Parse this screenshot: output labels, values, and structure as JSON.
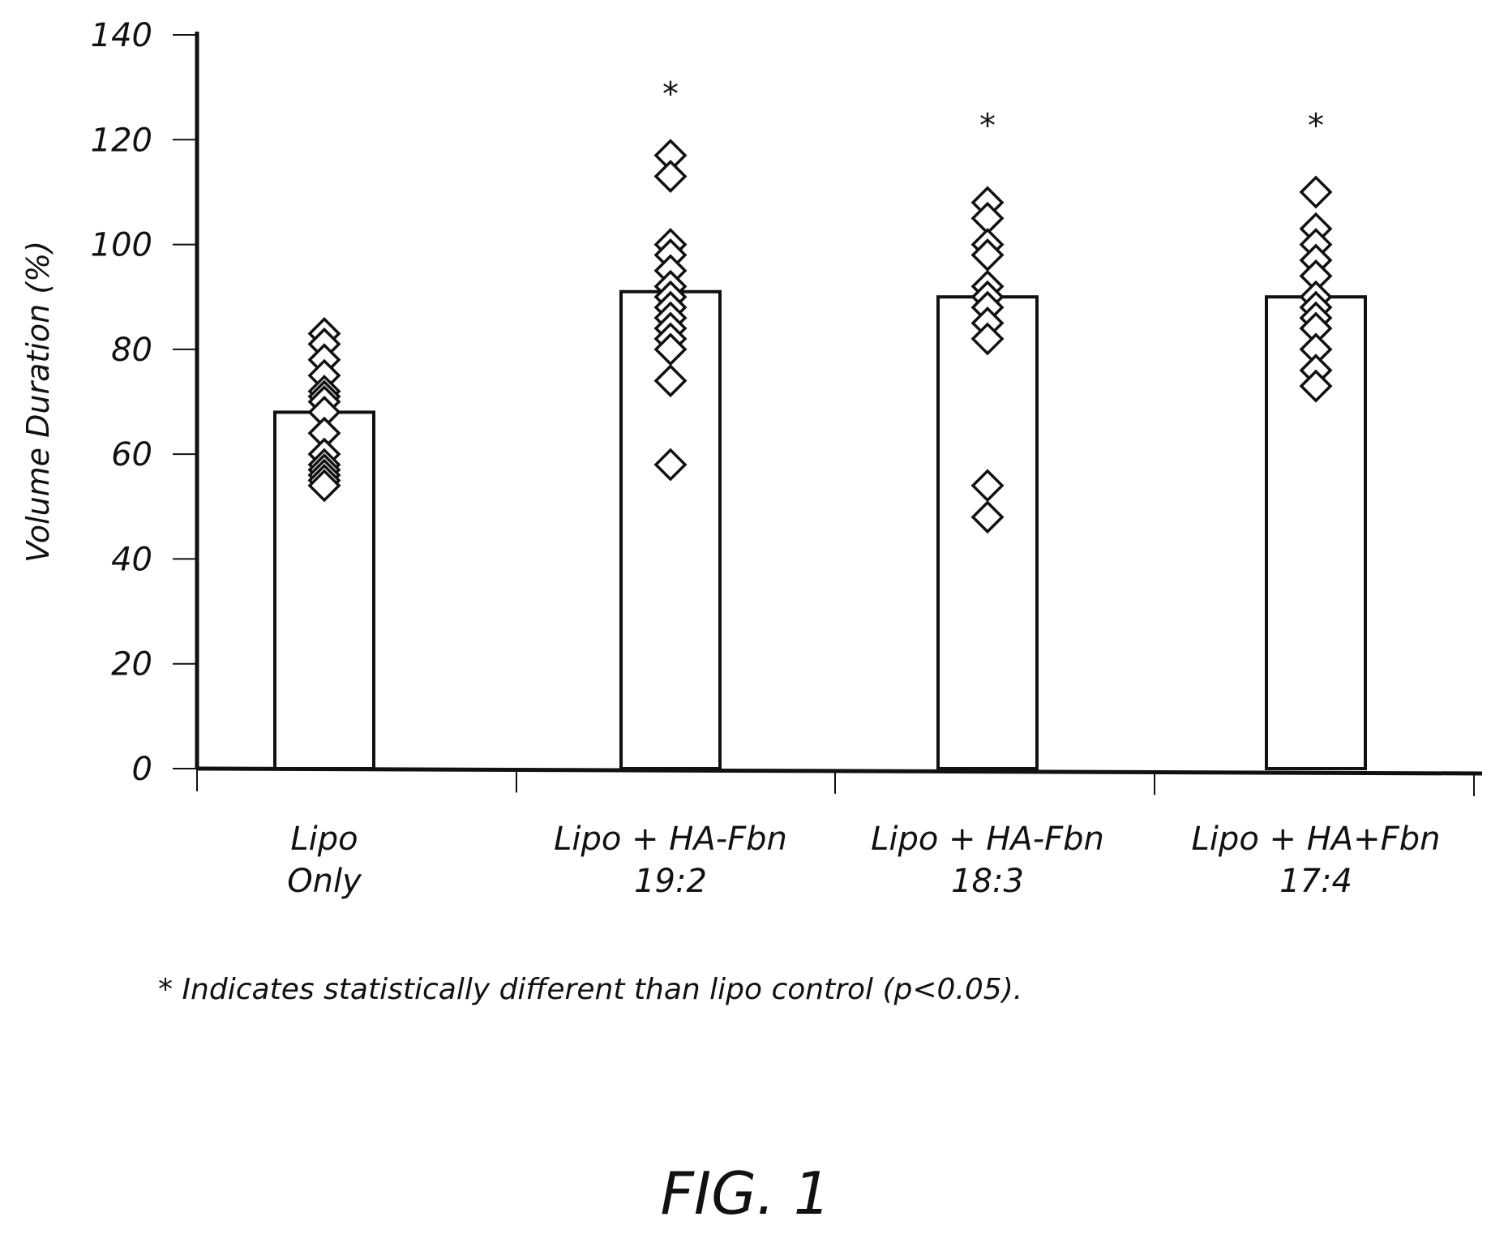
{
  "chart_data": {
    "type": "bar",
    "ylabel": "Volume Duration (%)",
    "ylim": [
      0,
      140
    ],
    "yticks": [
      0,
      20,
      40,
      60,
      80,
      100,
      120,
      140
    ],
    "ytick_labels": [
      "0",
      "20",
      "40",
      "60",
      "80",
      "100",
      "120",
      "140"
    ],
    "categories": [
      {
        "line1": "Lipo",
        "line2": "Only"
      },
      {
        "line1": "Lipo + HA-Fbn",
        "line2": "19:2"
      },
      {
        "line1": "Lipo + HA-Fbn",
        "line2": "18:3"
      },
      {
        "line1": "Lipo + HA+Fbn",
        "line2": "17:4"
      }
    ],
    "values": [
      68,
      91,
      90,
      90
    ],
    "points": [
      [
        83,
        81,
        78,
        75,
        72,
        71,
        70,
        68,
        64,
        60,
        58,
        57,
        56,
        55,
        54
      ],
      [
        117,
        113,
        100,
        98,
        95,
        92,
        90,
        88,
        86,
        84,
        82,
        80,
        74,
        58
      ],
      [
        108,
        105,
        100,
        98,
        92,
        90,
        88,
        85,
        82,
        54,
        48
      ],
      [
        110,
        103,
        100,
        97,
        94,
        90,
        88,
        86,
        84,
        80,
        76,
        73
      ]
    ],
    "significance": [
      "",
      "*",
      "*",
      "*"
    ],
    "grid": false
  },
  "footnote": "* Indicates statistically different than lipo control (p<0.05).",
  "figure_label": "FIG. 1"
}
